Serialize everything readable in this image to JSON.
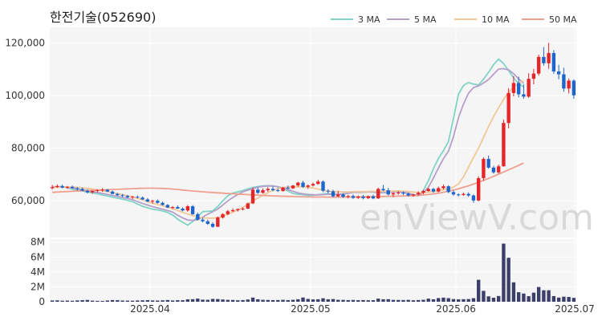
{
  "chart_data": {
    "type": "candlestick",
    "title": "한전기술(052690)",
    "watermark": "enViewV.com",
    "price_axis": {
      "ylim": [
        46000,
        126000
      ],
      "ticks": [
        120000,
        100000,
        80000,
        60000
      ],
      "tick_labels": [
        "120,000",
        "100,000",
        "80,000",
        "60,000"
      ]
    },
    "volume_axis": {
      "ylim": [
        0,
        8400000
      ],
      "ticks": [
        8000000,
        6000000,
        4000000,
        2000000,
        0
      ],
      "tick_labels": [
        "8M",
        "6M",
        "4M",
        "2M",
        "0"
      ]
    },
    "x_tick_labels": [
      {
        "label": "2025.04",
        "day": 20
      },
      {
        "label": "2025.05",
        "day": 52
      },
      {
        "label": "2025.06",
        "day": 81
      },
      {
        "label": "2025.07",
        "day": 113
      }
    ],
    "legend": [
      {
        "name": "3 MA",
        "color": "#7fd4c6"
      },
      {
        "name": "5 MA",
        "color": "#b49fcb"
      },
      {
        "name": "10 MA",
        "color": "#f2c89a"
      },
      {
        "name": "50 MA",
        "color": "#ef9f8e"
      }
    ],
    "colors": {
      "up": "#e5252a",
      "down": "#1f66cc",
      "volume": "#3d3f6b",
      "grid": "#ffffff",
      "plot_bg": "#f5f5f5"
    },
    "series": [
      {
        "name": "3 MA",
        "values": [
          65000,
          65180,
          65310,
          64920,
          64410,
          63990,
          63710,
          63350,
          63020,
          62650,
          62170,
          61820,
          61370,
          60990,
          60600,
          60170,
          59650,
          58770,
          57920,
          57330,
          56770,
          56490,
          56120,
          55570,
          54580,
          53000,
          51820,
          50710,
          52080,
          53970,
          55850,
          55940,
          56170,
          57830,
          59960,
          61880,
          62910,
          63360,
          63870,
          64480,
          65090,
          65410,
          65620,
          65770,
          65650,
          65320,
          64520,
          63720,
          62800,
          62470,
          62310,
          62020,
          62080,
          62310,
          62560,
          62720,
          62470,
          62350,
          62520,
          62930,
          63360,
          63440,
          63410,
          63400,
          63250,
          62990,
          63040,
          63280,
          63530,
          63550,
          63160,
          62720,
          62050,
          61900,
          63950,
          67630,
          72150,
          76080,
          79020,
          82490,
          91220,
          100560,
          103860,
          104960,
          104390,
          104060,
          106230,
          108880,
          111790,
          113890,
          112160,
          109500,
          106720,
          104460,
          103300
        ]
      },
      {
        "name": "5 MA",
        "values": [
          65300,
          65320,
          65310,
          65150,
          64870,
          64450,
          64170,
          63860,
          63470,
          63190,
          62790,
          62390,
          62010,
          61640,
          61250,
          60860,
          60370,
          59680,
          58980,
          58360,
          57760,
          57270,
          56780,
          56260,
          55680,
          54490,
          53480,
          52680,
          52510,
          52790,
          53820,
          54880,
          55840,
          56850,
          58350,
          59940,
          61230,
          62390,
          63380,
          64060,
          64620,
          65150,
          65480,
          65590,
          65570,
          65320,
          64900,
          64290,
          63620,
          62970,
          62640,
          62400,
          62260,
          62250,
          62340,
          62490,
          62470,
          62440,
          62580,
          62870,
          63190,
          63190,
          63260,
          63340,
          63340,
          63150,
          63110,
          63240,
          63420,
          63410,
          63230,
          62860,
          62300,
          62230,
          63080,
          65100,
          68580,
          72450,
          76000,
          78860,
          84320,
          91610,
          96760,
          100940,
          103080,
          103710,
          104790,
          106150,
          108150,
          110090,
          110280,
          109780,
          108360,
          106400,
          104690
        ]
      },
      {
        "name": "10 MA",
        "values": [
          65000,
          65100,
          65180,
          65230,
          65200,
          65100,
          64920,
          64700,
          64460,
          64180,
          63830,
          63460,
          63070,
          62690,
          62310,
          61910,
          61450,
          60880,
          60290,
          59700,
          59120,
          58590,
          58080,
          57560,
          56990,
          56280,
          55580,
          54930,
          54360,
          53880,
          53500,
          53380,
          53380,
          53580,
          54050,
          54800,
          55650,
          56500,
          57460,
          58580,
          59830,
          61010,
          62060,
          63060,
          63950,
          64610,
          65010,
          65210,
          65310,
          65310,
          65270,
          65110,
          64840,
          64430,
          64000,
          63690,
          63510,
          63390,
          63350,
          63380,
          63440,
          63480,
          63480,
          63510,
          63570,
          63570,
          63600,
          63660,
          63710,
          63730,
          63670,
          63530,
          63320,
          63120,
          63110,
          63250,
          63520,
          63870,
          64180,
          64550,
          65150,
          66440,
          69070,
          72790,
          76470,
          80010,
          84110,
          88210,
          92020,
          95410,
          98560,
          101270,
          103250,
          104720,
          105700
        ]
      },
      {
        "name": "50 MA",
        "values": [
          63200,
          63300,
          63410,
          63510,
          63610,
          63700,
          63790,
          63880,
          63960,
          64040,
          64120,
          64200,
          64280,
          64360,
          64440,
          64530,
          64610,
          64680,
          64740,
          64780,
          64790,
          64760,
          64690,
          64590,
          64450,
          64290,
          64090,
          63880,
          63710,
          63550,
          63400,
          63260,
          63130,
          63000,
          62880,
          62770,
          62660,
          62550,
          62440,
          62330,
          62230,
          62130,
          62030,
          61930,
          61850,
          61780,
          61710,
          61650,
          61590,
          61540,
          61500,
          61450,
          61430,
          61420,
          61410,
          61400,
          61400,
          61400,
          61400,
          61410,
          61430,
          61450,
          61480,
          61510,
          61550,
          61590,
          61630,
          61680,
          61730,
          61780,
          61830,
          61890,
          61950,
          62020,
          62170,
          62370,
          62610,
          62900,
          63230,
          63610,
          64060,
          64560,
          65100,
          65700,
          66340,
          67020,
          67750,
          68510,
          69300,
          70110,
          70940,
          71780,
          72630,
          73480,
          74330
        ]
      }
    ],
    "candles": [
      [
        64800,
        66000,
        64300,
        65200
      ],
      [
        65200,
        66200,
        64900,
        65600
      ],
      [
        65600,
        66100,
        64700,
        65000
      ],
      [
        65000,
        65600,
        64500,
        65300
      ],
      [
        65300,
        65800,
        64600,
        64800
      ],
      [
        64800,
        65200,
        63900,
        64500
      ],
      [
        64500,
        65000,
        63700,
        63800
      ],
      [
        63800,
        64300,
        62800,
        63200
      ],
      [
        63200,
        64000,
        62600,
        63700
      ],
      [
        63700,
        64400,
        63200,
        64000
      ],
      [
        64000,
        64800,
        63400,
        64200
      ],
      [
        64200,
        64500,
        63300,
        63500
      ],
      [
        63500,
        63900,
        62400,
        62600
      ],
      [
        62600,
        63000,
        61800,
        62100
      ],
      [
        62100,
        62600,
        61400,
        61800
      ],
      [
        61800,
        62200,
        61000,
        61300
      ],
      [
        61300,
        61900,
        60600,
        61500
      ],
      [
        61500,
        62000,
        60900,
        61200
      ],
      [
        61200,
        61600,
        60300,
        60500
      ],
      [
        60500,
        61000,
        59400,
        59700
      ],
      [
        59700,
        60400,
        58800,
        60000
      ],
      [
        60000,
        60500,
        58900,
        59200
      ],
      [
        59200,
        59700,
        58200,
        58400
      ],
      [
        58400,
        58700,
        57200,
        57400
      ],
      [
        57400,
        58000,
        56800,
        57600
      ],
      [
        57600,
        58200,
        56900,
        57000
      ],
      [
        57000,
        57500,
        56000,
        56300
      ],
      [
        56300,
        58400,
        55800,
        57900
      ],
      [
        57900,
        58300,
        54600,
        54900
      ],
      [
        54900,
        55500,
        52500,
        52800
      ],
      [
        52800,
        53600,
        51800,
        52200
      ],
      [
        52200,
        52800,
        50800,
        51200
      ],
      [
        51200,
        51800,
        49700,
        50100
      ],
      [
        50100,
        54000,
        50000,
        53600
      ],
      [
        53600,
        55300,
        53200,
        54900
      ],
      [
        54900,
        56500,
        54500,
        56000
      ],
      [
        56000,
        57100,
        55700,
        56400
      ],
      [
        56400,
        57100,
        55900,
        56800
      ],
      [
        56800,
        57500,
        56300,
        57000
      ],
      [
        57000,
        59300,
        56800,
        59000
      ],
      [
        59000,
        65000,
        58700,
        64200
      ],
      [
        64200,
        65000,
        62600,
        63000
      ],
      [
        63000,
        64700,
        62700,
        64000
      ],
      [
        64000,
        65200,
        63400,
        64500
      ],
      [
        64500,
        65400,
        63600,
        64000
      ],
      [
        64000,
        64700,
        63300,
        63700
      ],
      [
        63700,
        65300,
        63500,
        65000
      ],
      [
        65000,
        65800,
        64300,
        64700
      ],
      [
        64700,
        66000,
        64500,
        65800
      ],
      [
        65800,
        67200,
        65300,
        66900
      ],
      [
        66900,
        67600,
        64900,
        65300
      ],
      [
        65300,
        66200,
        64500,
        65800
      ],
      [
        65800,
        66900,
        65400,
        66400
      ],
      [
        66400,
        68000,
        66100,
        67300
      ],
      [
        67300,
        67700,
        63300,
        63800
      ],
      [
        63800,
        64400,
        62800,
        63600
      ],
      [
        63600,
        64200,
        61300,
        61700
      ],
      [
        61700,
        63800,
        61400,
        62400
      ],
      [
        62400,
        62900,
        61100,
        61500
      ],
      [
        61500,
        62200,
        60900,
        61800
      ],
      [
        61800,
        62400,
        60700,
        61100
      ],
      [
        61100,
        62000,
        60700,
        61600
      ],
      [
        61600,
        62200,
        60500,
        61000
      ],
      [
        61000,
        62000,
        60600,
        61700
      ],
      [
        61700,
        62300,
        60600,
        60900
      ],
      [
        60900,
        65000,
        60700,
        64500
      ],
      [
        64500,
        66000,
        63700,
        64000
      ],
      [
        64000,
        64900,
        62000,
        62400
      ],
      [
        62400,
        63300,
        61300,
        62900
      ],
      [
        62900,
        63700,
        62300,
        63100
      ],
      [
        63100,
        63600,
        62200,
        62700
      ],
      [
        62700,
        63200,
        61600,
        62000
      ],
      [
        62000,
        62700,
        61500,
        62400
      ],
      [
        62400,
        63600,
        62000,
        63000
      ],
      [
        63000,
        64100,
        62500,
        63700
      ],
      [
        63700,
        65000,
        63400,
        64500
      ],
      [
        64500,
        64900,
        63000,
        63500
      ],
      [
        63500,
        65400,
        63200,
        64800
      ],
      [
        64800,
        66200,
        64300,
        65500
      ],
      [
        65500,
        65900,
        62900,
        63300
      ],
      [
        63300,
        63900,
        61900,
        62400
      ],
      [
        62400,
        62800,
        61600,
        62200
      ],
      [
        62200,
        63100,
        61900,
        62600
      ],
      [
        62600,
        63200,
        61500,
        62000
      ],
      [
        62000,
        62400,
        59200,
        60100
      ],
      [
        60100,
        69300,
        59800,
        68600
      ],
      [
        68600,
        76500,
        67600,
        75900
      ],
      [
        75900,
        77200,
        72200,
        72600
      ],
      [
        72600,
        73300,
        70300,
        70800
      ],
      [
        70800,
        73800,
        70300,
        73100
      ],
      [
        73100,
        90900,
        73000,
        89600
      ],
      [
        89600,
        102800,
        87500,
        101000
      ],
      [
        101000,
        107500,
        99700,
        104800
      ],
      [
        104800,
        107200,
        99300,
        100500
      ],
      [
        100500,
        104300,
        98800,
        99600
      ],
      [
        99600,
        108500,
        99200,
        106400
      ],
      [
        106400,
        110200,
        104300,
        108400
      ],
      [
        108400,
        115600,
        107600,
        114700
      ],
      [
        114700,
        118500,
        111400,
        112300
      ],
      [
        112300,
        120100,
        110200,
        116200
      ],
      [
        116200,
        117300,
        108300,
        109200
      ],
      [
        109200,
        111700,
        106200,
        108100
      ],
      [
        108100,
        110600,
        101500,
        102700
      ],
      [
        102700,
        106500,
        100800,
        105700
      ],
      [
        105700,
        106200,
        98800,
        100100
      ]
    ],
    "volume": [
      170000,
      190000,
      140000,
      160000,
      130000,
      180000,
      210000,
      240000,
      150000,
      120000,
      110000,
      170000,
      230000,
      210000,
      160000,
      150000,
      140000,
      170000,
      190000,
      210000,
      170000,
      160000,
      190000,
      230000,
      170000,
      210000,
      200000,
      320000,
      340000,
      420000,
      280000,
      260000,
      380000,
      360000,
      300000,
      250000,
      240000,
      200000,
      220000,
      300000,
      560000,
      330000,
      260000,
      240000,
      220000,
      230000,
      260000,
      220000,
      260000,
      330000,
      570000,
      380000,
      310000,
      330000,
      470000,
      330000,
      360000,
      260000,
      250000,
      220000,
      240000,
      210000,
      230000,
      200000,
      210000,
      420000,
      330000,
      340000,
      250000,
      240000,
      230000,
      250000,
      200000,
      230000,
      260000,
      420000,
      330000,
      490000,
      550000,
      480000,
      360000,
      330000,
      340000,
      360000,
      480000,
      2950000,
      1460000,
      730000,
      540000,
      770000,
      7800000,
      5900000,
      2600000,
      1280000,
      1100000,
      750000,
      1220000,
      1980000,
      1540000,
      1540000,
      760000,
      560000,
      680000,
      640000,
      520000
    ]
  }
}
